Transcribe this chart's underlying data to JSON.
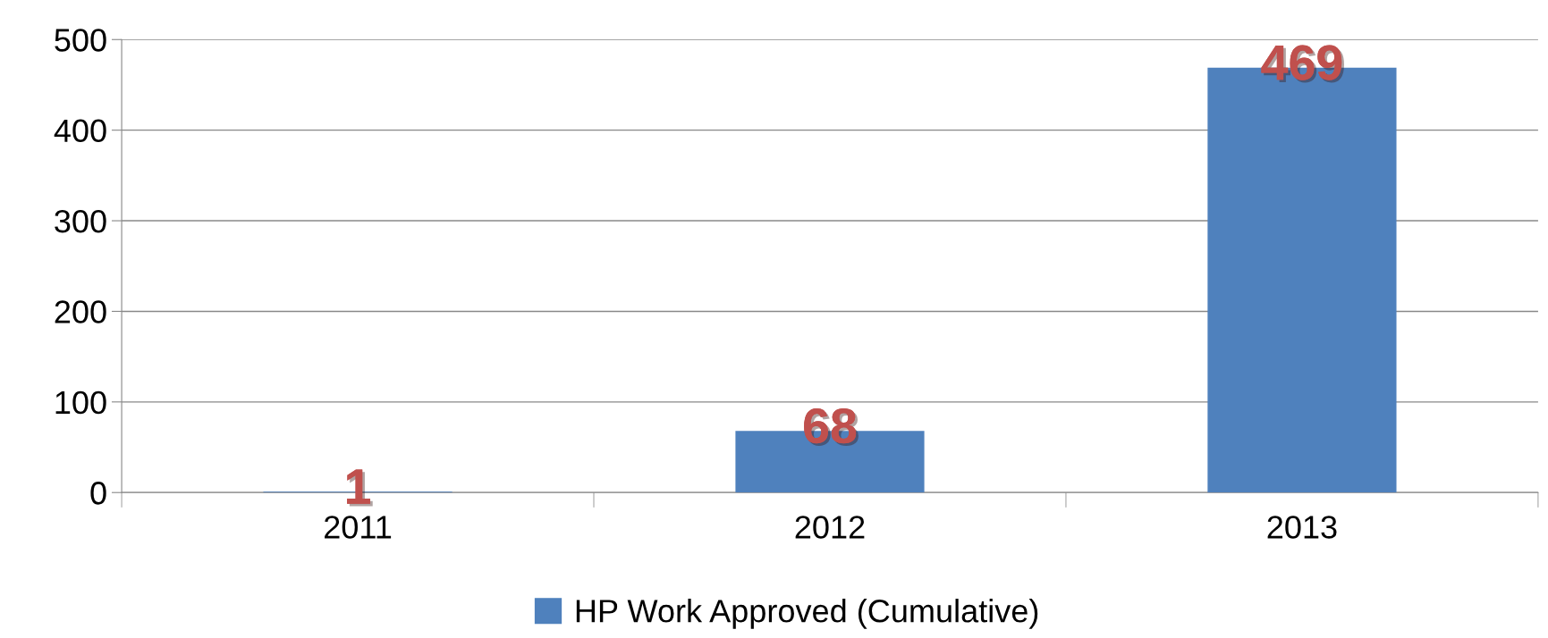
{
  "chart_data": {
    "type": "bar",
    "categories": [
      "2011",
      "2012",
      "2013"
    ],
    "series": [
      {
        "name": "HP Work Approved (Cumulative)",
        "color": "#4f81bd",
        "values": [
          1,
          68,
          469
        ]
      }
    ],
    "ylim": [
      0,
      500
    ],
    "yticks": [
      0,
      100,
      200,
      300,
      400,
      500
    ],
    "grid": "y",
    "legend": "bottom",
    "data_labels": true
  }
}
